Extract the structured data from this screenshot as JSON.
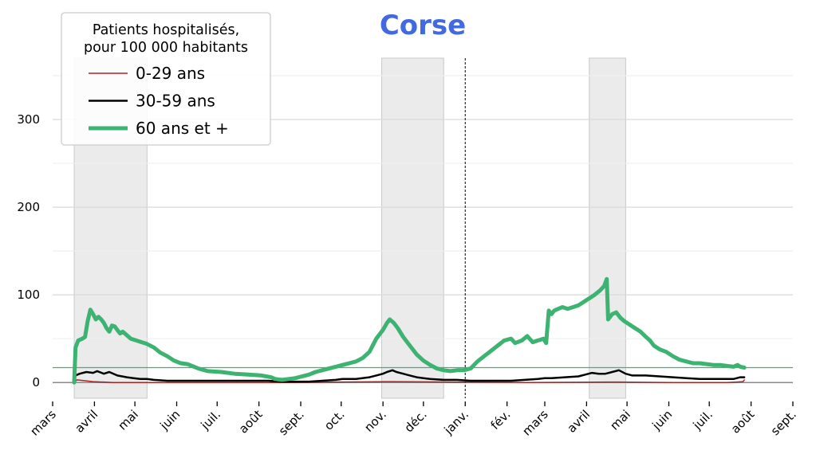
{
  "chart_data": {
    "type": "line",
    "title": "Corse",
    "title_color": "#4169e1",
    "ylim": [
      -18,
      370
    ],
    "yticks": [
      0,
      100,
      200,
      300
    ],
    "yminor": [
      50,
      150,
      250,
      350
    ],
    "xtick_labels": [
      "mars",
      "avril",
      "mai",
      "juin",
      "juil.",
      "août",
      "sept.",
      "oct.",
      "nov.",
      "déc.",
      "janv.",
      "fév.",
      "mars",
      "avril",
      "mai",
      "juin",
      "juil.",
      "août",
      "sept."
    ],
    "xtick_days": [
      0,
      31,
      61,
      92,
      122,
      153,
      184,
      214,
      245,
      275,
      306,
      337,
      365,
      396,
      426,
      457,
      487,
      518,
      549
    ],
    "xlim": [
      0,
      549
    ],
    "shaded_periods": [
      [
        16,
        70
      ],
      [
        244,
        290
      ],
      [
        398,
        425
      ]
    ],
    "vertical_marker_day": 306,
    "reference_line": {
      "value": 17,
      "color": "#3cb371"
    },
    "zero_line_color": "#888888",
    "legend": {
      "title": "Patients hospitalisés,\npour 100 000 habitants",
      "title_lines": [
        "Patients hospitalisés,",
        "pour 100 000 habitants"
      ],
      "placement": "top-left"
    },
    "series": [
      {
        "name": "0-29 ans",
        "color": "#b22222",
        "width": 1.5,
        "points": [
          [
            16,
            0
          ],
          [
            18,
            3
          ],
          [
            30,
            1
          ],
          [
            45,
            0
          ],
          [
            100,
            0
          ],
          [
            180,
            0
          ],
          [
            210,
            0.5
          ],
          [
            250,
            1
          ],
          [
            300,
            0.5
          ],
          [
            350,
            0
          ],
          [
            420,
            0.5
          ],
          [
            460,
            0
          ],
          [
            500,
            0
          ],
          [
            512,
            1
          ],
          [
            513,
            3
          ]
        ]
      },
      {
        "name": "30-59 ans",
        "color": "#000000",
        "width": 2.5,
        "points": [
          [
            16,
            0
          ],
          [
            17,
            8
          ],
          [
            20,
            10
          ],
          [
            25,
            12
          ],
          [
            30,
            11
          ],
          [
            33,
            13
          ],
          [
            38,
            10
          ],
          [
            42,
            12
          ],
          [
            48,
            8
          ],
          [
            55,
            6
          ],
          [
            60,
            5
          ],
          [
            65,
            4
          ],
          [
            70,
            4
          ],
          [
            75,
            3
          ],
          [
            85,
            2
          ],
          [
            100,
            2
          ],
          [
            130,
            2
          ],
          [
            160,
            2
          ],
          [
            170,
            1
          ],
          [
            180,
            1
          ],
          [
            190,
            1
          ],
          [
            200,
            2
          ],
          [
            210,
            3
          ],
          [
            215,
            4
          ],
          [
            225,
            4
          ],
          [
            235,
            6
          ],
          [
            240,
            8
          ],
          [
            245,
            10
          ],
          [
            248,
            12
          ],
          [
            252,
            14
          ],
          [
            255,
            12
          ],
          [
            260,
            10
          ],
          [
            265,
            8
          ],
          [
            270,
            6
          ],
          [
            275,
            5
          ],
          [
            280,
            4
          ],
          [
            290,
            3
          ],
          [
            300,
            3
          ],
          [
            310,
            2
          ],
          [
            320,
            2
          ],
          [
            330,
            2
          ],
          [
            340,
            2
          ],
          [
            350,
            3
          ],
          [
            360,
            4
          ],
          [
            365,
            5
          ],
          [
            370,
            5
          ],
          [
            380,
            6
          ],
          [
            390,
            7
          ],
          [
            395,
            9
          ],
          [
            400,
            11
          ],
          [
            405,
            10
          ],
          [
            410,
            10
          ],
          [
            415,
            12
          ],
          [
            420,
            14
          ],
          [
            425,
            10
          ],
          [
            430,
            8
          ],
          [
            440,
            8
          ],
          [
            450,
            7
          ],
          [
            460,
            6
          ],
          [
            470,
            5
          ],
          [
            480,
            4
          ],
          [
            490,
            4
          ],
          [
            500,
            4
          ],
          [
            505,
            4
          ],
          [
            510,
            6
          ],
          [
            513,
            6
          ]
        ]
      },
      {
        "name": "60 ans et +",
        "color": "#3cb371",
        "width": 5,
        "points": [
          [
            16,
            0
          ],
          [
            17,
            40
          ],
          [
            19,
            48
          ],
          [
            22,
            50
          ],
          [
            24,
            52
          ],
          [
            26,
            70
          ],
          [
            28,
            83
          ],
          [
            30,
            78
          ],
          [
            32,
            72
          ],
          [
            34,
            75
          ],
          [
            36,
            72
          ],
          [
            38,
            68
          ],
          [
            40,
            62
          ],
          [
            42,
            58
          ],
          [
            44,
            65
          ],
          [
            46,
            64
          ],
          [
            48,
            60
          ],
          [
            50,
            56
          ],
          [
            52,
            58
          ],
          [
            55,
            54
          ],
          [
            58,
            50
          ],
          [
            62,
            48
          ],
          [
            66,
            46
          ],
          [
            70,
            44
          ],
          [
            75,
            40
          ],
          [
            80,
            34
          ],
          [
            85,
            30
          ],
          [
            90,
            25
          ],
          [
            95,
            22
          ],
          [
            100,
            21
          ],
          [
            108,
            16
          ],
          [
            115,
            13
          ],
          [
            125,
            12
          ],
          [
            135,
            10
          ],
          [
            145,
            9
          ],
          [
            155,
            8
          ],
          [
            162,
            6
          ],
          [
            165,
            4
          ],
          [
            170,
            3
          ],
          [
            175,
            4
          ],
          [
            180,
            5
          ],
          [
            185,
            7
          ],
          [
            190,
            9
          ],
          [
            195,
            12
          ],
          [
            200,
            14
          ],
          [
            205,
            16
          ],
          [
            210,
            18
          ],
          [
            215,
            20
          ],
          [
            220,
            22
          ],
          [
            225,
            24
          ],
          [
            230,
            28
          ],
          [
            235,
            35
          ],
          [
            240,
            50
          ],
          [
            245,
            60
          ],
          [
            248,
            68
          ],
          [
            250,
            72
          ],
          [
            253,
            68
          ],
          [
            256,
            62
          ],
          [
            260,
            52
          ],
          [
            265,
            42
          ],
          [
            270,
            32
          ],
          [
            275,
            25
          ],
          [
            280,
            20
          ],
          [
            285,
            16
          ],
          [
            290,
            14
          ],
          [
            295,
            13
          ],
          [
            300,
            14
          ],
          [
            305,
            14
          ],
          [
            310,
            16
          ],
          [
            315,
            24
          ],
          [
            320,
            30
          ],
          [
            325,
            36
          ],
          [
            330,
            42
          ],
          [
            335,
            48
          ],
          [
            340,
            50
          ],
          [
            343,
            45
          ],
          [
            348,
            48
          ],
          [
            352,
            53
          ],
          [
            356,
            46
          ],
          [
            360,
            48
          ],
          [
            364,
            50
          ],
          [
            366,
            45
          ],
          [
            368,
            82
          ],
          [
            370,
            78
          ],
          [
            372,
            82
          ],
          [
            375,
            84
          ],
          [
            378,
            86
          ],
          [
            382,
            84
          ],
          [
            386,
            86
          ],
          [
            390,
            88
          ],
          [
            394,
            92
          ],
          [
            398,
            96
          ],
          [
            402,
            100
          ],
          [
            406,
            105
          ],
          [
            409,
            110
          ],
          [
            411,
            118
          ],
          [
            412,
            72
          ],
          [
            415,
            78
          ],
          [
            418,
            80
          ],
          [
            421,
            74
          ],
          [
            424,
            70
          ],
          [
            428,
            66
          ],
          [
            432,
            62
          ],
          [
            436,
            58
          ],
          [
            440,
            52
          ],
          [
            443,
            48
          ],
          [
            446,
            42
          ],
          [
            450,
            38
          ],
          [
            455,
            35
          ],
          [
            460,
            30
          ],
          [
            465,
            26
          ],
          [
            470,
            24
          ],
          [
            475,
            22
          ],
          [
            480,
            22
          ],
          [
            485,
            21
          ],
          [
            490,
            20
          ],
          [
            495,
            20
          ],
          [
            500,
            19
          ],
          [
            505,
            18
          ],
          [
            508,
            20
          ],
          [
            510,
            18
          ],
          [
            513,
            17
          ]
        ]
      }
    ]
  }
}
